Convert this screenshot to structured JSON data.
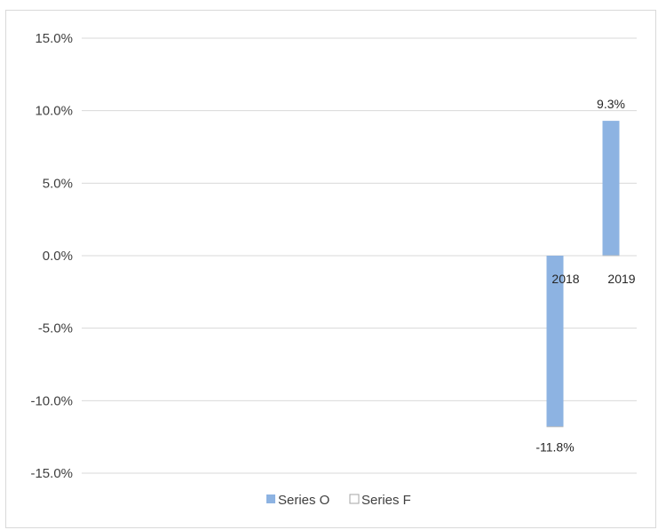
{
  "chart_data": {
    "type": "bar",
    "title": "",
    "xlabel": "",
    "ylabel": "",
    "categories": [
      "2018",
      "2019"
    ],
    "series": [
      {
        "name": "Series O",
        "color": "#8db3e2",
        "values": [
          -11.8,
          9.3
        ],
        "labels": [
          "-11.8%",
          "9.3%"
        ]
      },
      {
        "name": "Series F",
        "color": "#d9d9d9",
        "values": [
          null,
          null
        ]
      }
    ],
    "ylim": [
      -15,
      15
    ],
    "yticks": [
      15,
      10,
      5,
      0,
      -5,
      -10,
      -15
    ],
    "ytick_labels": [
      "15.0%",
      "10.0%",
      "5.0%",
      "0.0%",
      "-5.0%",
      "-10.0%",
      "-15.0%"
    ],
    "grid": true,
    "legend_position": "bottom"
  }
}
